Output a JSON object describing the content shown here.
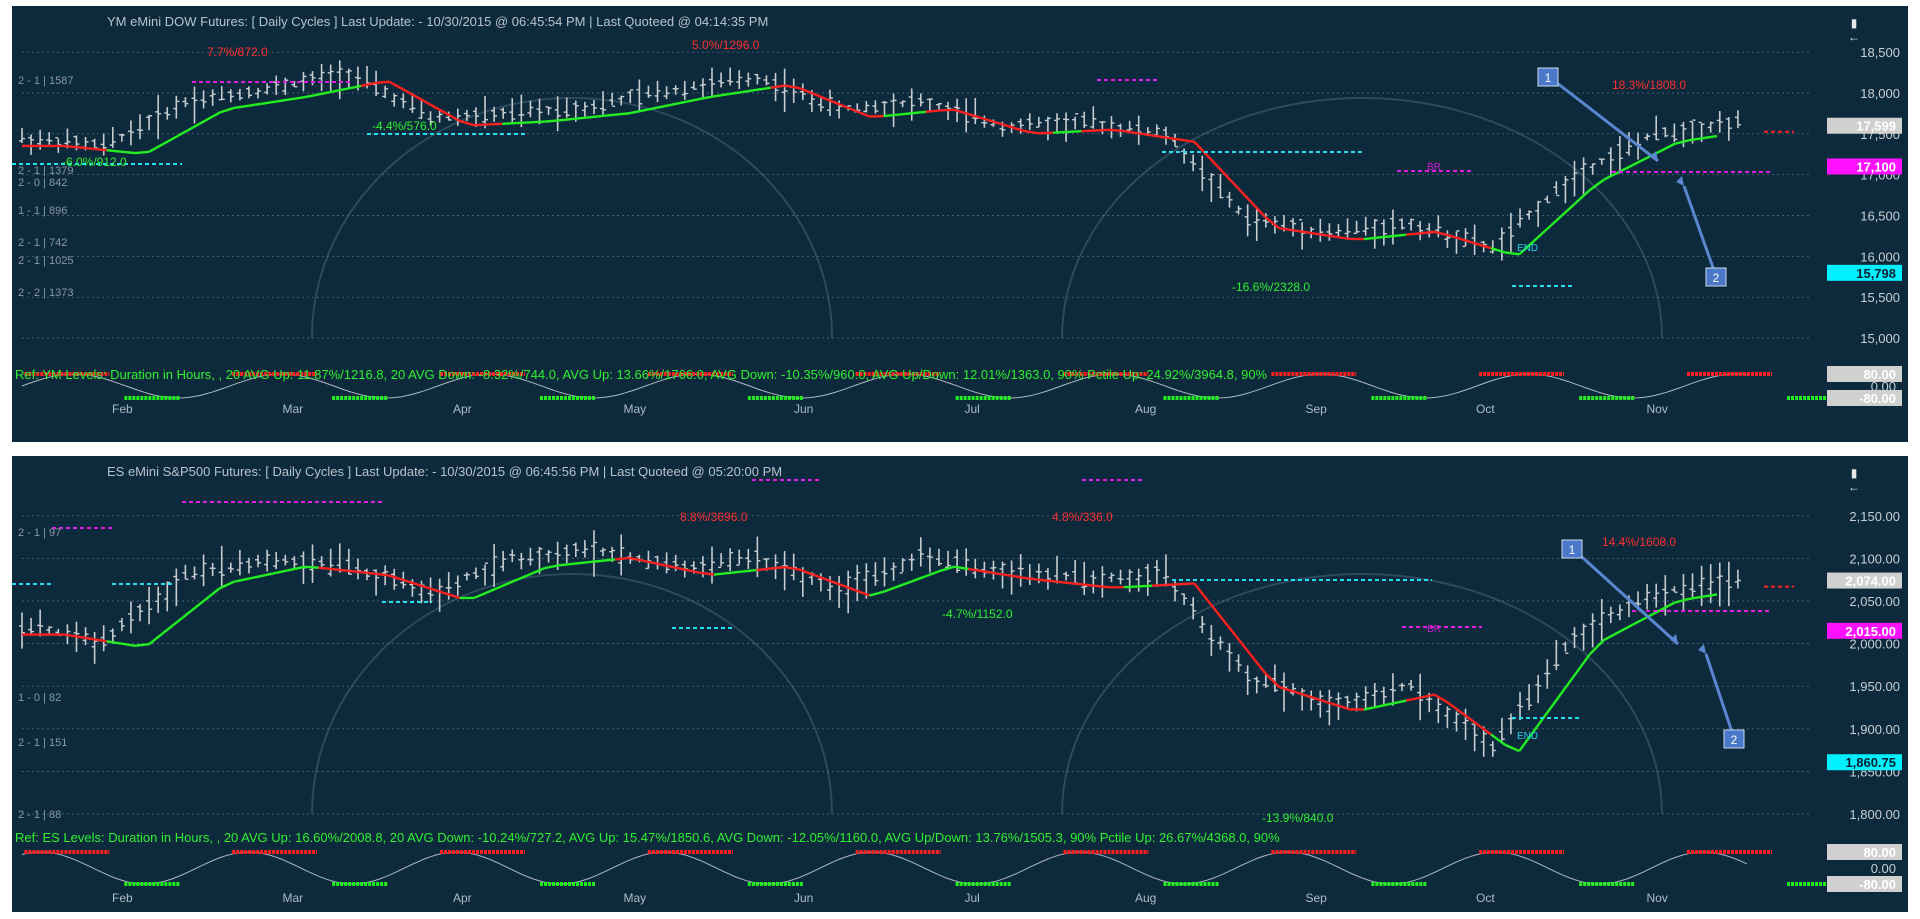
{
  "panels": [
    {
      "id": "ym",
      "title": "YM eMini DOW Futures: [ Daily Cycles ] Last Update:  - 10/30/2015 @ 06:45:54 PM | Last Quoteed @ 04:14:35 PM",
      "ref_text": "Ref: YM Levels: Duration in Hours, , 20 AVG Up: 11.87%/1216.8, 20 AVG Down: -8.32%/744.0, AVG Up: 13.66%/1766.0, AVG Down: -10.35%/960.0, AVG Up/Down: 12.01%/1363.0, 90% Pctile Up: 24.92%/3964.8, 90%",
      "side_labels": [
        "2 - 1 | 1587",
        "2 - 1 | 1379",
        "2 - 0 | 842",
        "1 - 1 | 896",
        "2 - 1 | 742",
        "2 - 1 | 1025",
        "2 - 2 | 1373"
      ],
      "axis_ticks": [
        "18,500",
        "18,000",
        "17,500",
        "17,000",
        "16,500",
        "16,000",
        "15,500",
        "15,000"
      ],
      "osc_ticks": [
        "0.00"
      ],
      "badges": {
        "last": "17,599",
        "magenta": "17,100",
        "cyan": "15,798",
        "osc_upper": "80.00",
        "osc_lower": "-80.00"
      },
      "annotations": [
        {
          "text": "7.7%/872.0",
          "color": "#ff3030"
        },
        {
          "text": "5.0%/1296.0",
          "color": "#ff3030"
        },
        {
          "text": "18.3%/1808.0",
          "color": "#ff3030"
        },
        {
          "text": "-4.4%/576.0",
          "color": "#2cf032"
        },
        {
          "text": "-6.0%/912.0",
          "color": "#2cf032"
        },
        {
          "text": "-16.6%/2328.0",
          "color": "#2cf032"
        },
        {
          "text": "BR",
          "color": "#d020d0"
        },
        {
          "text": "END",
          "color": "#20d0e8"
        }
      ],
      "months": [
        "Feb",
        "Mar",
        "Apr",
        "May",
        "Jun",
        "Jul",
        "Aug",
        "Sep",
        "Oct",
        "Nov"
      ],
      "callouts": [
        "1",
        "2"
      ]
    },
    {
      "id": "es",
      "title": "ES eMini S&P500 Futures: [ Daily Cycles ] Last Update:  - 10/30/2015 @ 06:45:56 PM | Last Quoteed @ 05:20:00 PM",
      "ref_text": "Ref: ES Levels: Duration in Hours, , 20 AVG Up: 16.60%/2008.8, 20 AVG Down: -10.24%/727.2, AVG Up: 15.47%/1850.6, AVG Down: -12.05%/1160.0, AVG Up/Down: 13.76%/1505.3, 90% Pctile Up: 26.67%/4368.0, 90%",
      "side_labels": [
        "2 - 1 | 97",
        "1 - 0 | 82",
        "2 - 1 | 151",
        "2 - 1 | 88"
      ],
      "axis_ticks": [
        "2,150.00",
        "2,100.00",
        "2,050.00",
        "2,000.00",
        "1,950.00",
        "1,900.00",
        "1,850.00",
        "1,800.00"
      ],
      "osc_ticks": [
        "0.00"
      ],
      "badges": {
        "last": "2,074.00",
        "magenta": "2,015.00",
        "cyan": "1,860.75",
        "osc_upper": "80.00",
        "osc_lower": "-80.00"
      },
      "annotations": [
        {
          "text": "8.8%/3696.0",
          "color": "#ff3030"
        },
        {
          "text": "4.8%/336.0",
          "color": "#ff3030"
        },
        {
          "text": "14.4%/1608.0",
          "color": "#ff3030"
        },
        {
          "text": "-4.7%/1152.0",
          "color": "#2cf032"
        },
        {
          "text": "-13.9%/840.0",
          "color": "#2cf032"
        },
        {
          "text": "BR",
          "color": "#d020d0"
        },
        {
          "text": "END",
          "color": "#20d0e8"
        }
      ],
      "months": [
        "Feb",
        "Mar",
        "Apr",
        "May",
        "Jun",
        "Jul",
        "Aug",
        "Sep",
        "Oct",
        "Nov"
      ],
      "callouts": [
        "1",
        "2"
      ]
    }
  ],
  "colors": {
    "panel_bg": "#0c2a3b",
    "bars": "#c8ccd0",
    "red_line": "#ff2020",
    "green_line": "#22ee22",
    "magenta_level": "#e020e0",
    "cyan_level": "#20e0f0",
    "callout_box": "#4a78c8"
  },
  "chart_data": [
    {
      "type": "line",
      "title": "YM eMini DOW Futures: [ Daily Cycles ]",
      "x": [
        "Feb",
        "Mar",
        "Apr",
        "May",
        "Jun",
        "Jul",
        "Aug",
        "Sep",
        "Oct",
        "Nov"
      ],
      "ylim": [
        15000,
        18600
      ],
      "closes": [
        17450,
        17350,
        17900,
        18050,
        18250,
        17700,
        17750,
        17850,
        18050,
        18200,
        17800,
        17900,
        17600,
        17650,
        17500,
        16450,
        16300,
        16400,
        16100,
        17000,
        17500,
        17650
      ],
      "levels": {
        "last": 17599,
        "magenta": 17100,
        "cyan": 15798
      }
    },
    {
      "type": "line",
      "title": "ES eMini S&P500 Futures: [ Daily Cycles ]",
      "x": [
        "Feb",
        "Mar",
        "Apr",
        "May",
        "Jun",
        "Jul",
        "Aug",
        "Sep",
        "Oct",
        "Nov"
      ],
      "ylim": [
        1800,
        2185
      ],
      "closes": [
        2020,
        2005,
        2080,
        2100,
        2090,
        2060,
        2100,
        2110,
        2090,
        2100,
        2065,
        2100,
        2085,
        2075,
        2080,
        1960,
        1930,
        1950,
        1880,
        2010,
        2060,
        2075
      ],
      "levels": {
        "last": 2074.0,
        "magenta": 2015.0,
        "cyan": 1860.75
      }
    }
  ]
}
